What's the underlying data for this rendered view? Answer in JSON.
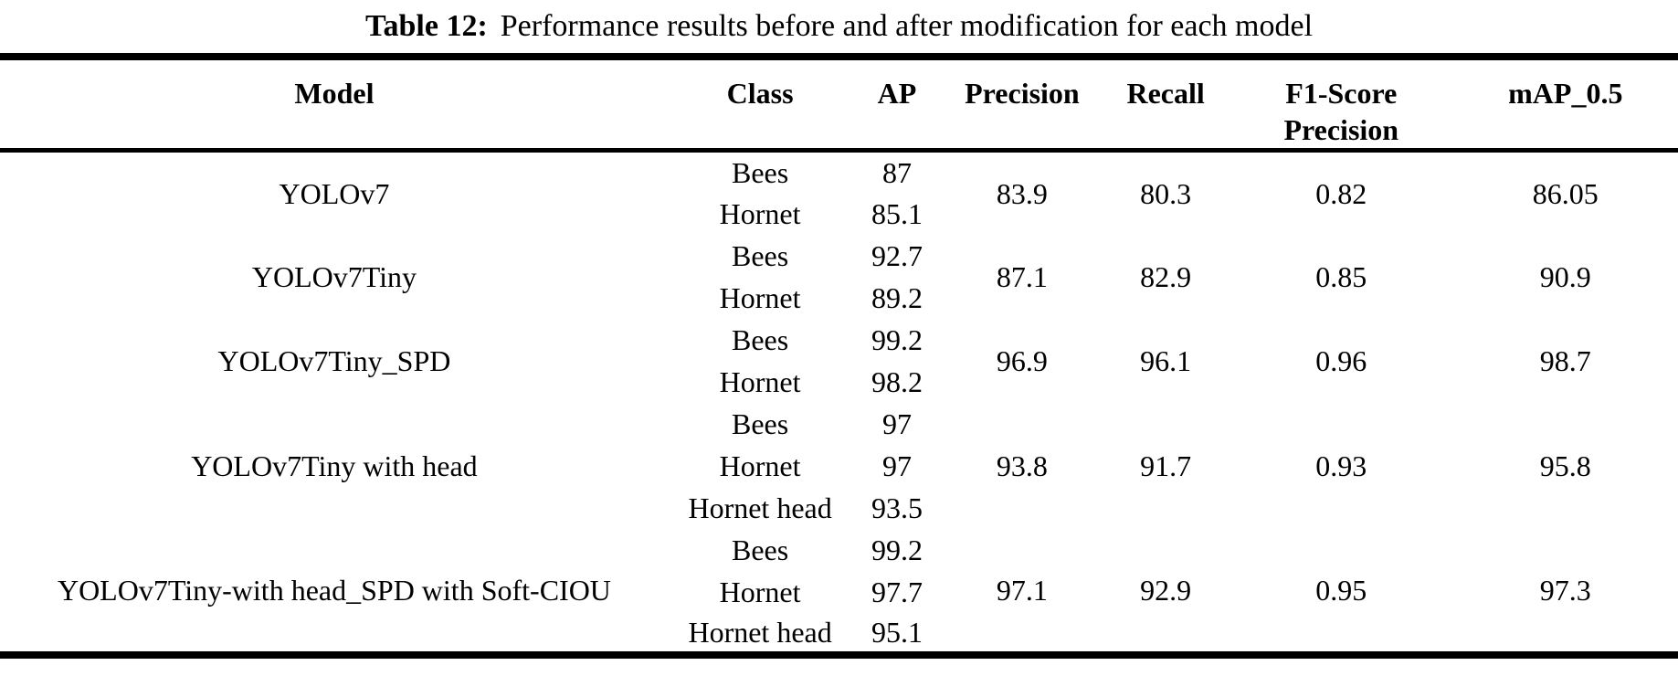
{
  "title": {
    "label": "Table 12:",
    "text": "Performance results before and after modification for each model"
  },
  "table": {
    "headers": {
      "model": "Model",
      "class": "Class",
      "ap": "AP",
      "precision": "Precision",
      "recall": "Recall",
      "f1_line1": "F1-Score",
      "f1_line2": "Precision",
      "map": "mAP_0.5"
    },
    "groups": [
      {
        "model": "YOLOv7",
        "classes": [
          {
            "name": "Bees",
            "ap": "87"
          },
          {
            "name": "Hornet",
            "ap": "85.1"
          }
        ],
        "precision": "83.9",
        "recall": "80.3",
        "f1_score": "0.82",
        "map_0_5": "86.05"
      },
      {
        "model": "YOLOv7Tiny",
        "classes": [
          {
            "name": "Bees",
            "ap": "92.7"
          },
          {
            "name": "Hornet",
            "ap": "89.2"
          }
        ],
        "precision": "87.1",
        "recall": "82.9",
        "f1_score": "0.85",
        "map_0_5": "90.9"
      },
      {
        "model": "YOLOv7Tiny_SPD",
        "classes": [
          {
            "name": "Bees",
            "ap": "99.2"
          },
          {
            "name": "Hornet",
            "ap": "98.2"
          }
        ],
        "precision": "96.9",
        "recall": "96.1",
        "f1_score": "0.96",
        "map_0_5": "98.7"
      },
      {
        "model": "YOLOv7Tiny with head",
        "classes": [
          {
            "name": "Bees",
            "ap": "97"
          },
          {
            "name": "Hornet",
            "ap": "97"
          },
          {
            "name": "Hornet head",
            "ap": "93.5"
          }
        ],
        "precision": "93.8",
        "recall": "91.7",
        "f1_score": "0.93",
        "map_0_5": "95.8"
      },
      {
        "model": "YOLOv7Tiny-with head_SPD with Soft-CIOU",
        "classes": [
          {
            "name": "Bees",
            "ap": "99.2"
          },
          {
            "name": "Hornet",
            "ap": "97.7"
          },
          {
            "name": "Hornet head",
            "ap": "95.1"
          }
        ],
        "precision": "97.1",
        "recall": "92.9",
        "f1_score": "0.95",
        "map_0_5": "97.3"
      }
    ]
  }
}
